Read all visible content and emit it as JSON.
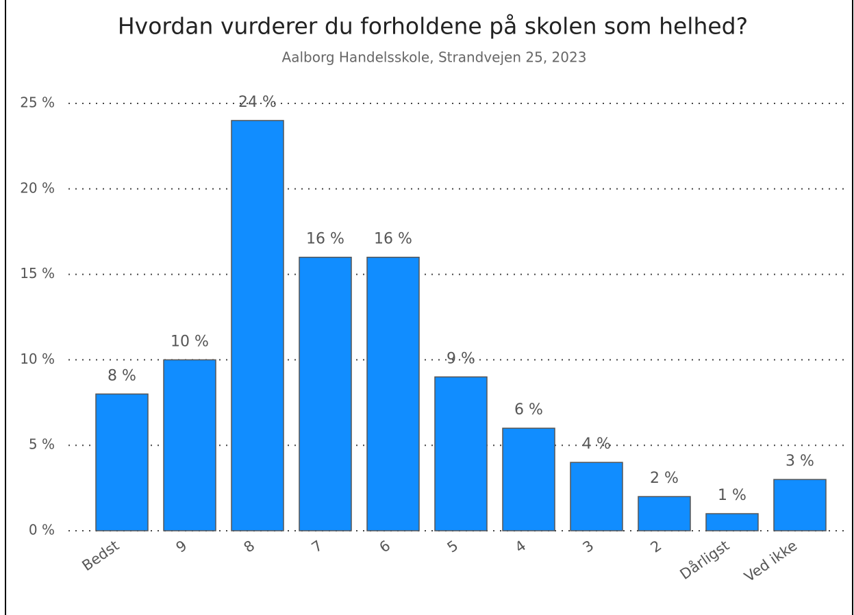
{
  "chart_data": {
    "type": "bar",
    "title": "Hvordan vurderer du forholdene på skolen som helhed?",
    "subtitle": "Aalborg Handelsskole, Strandvejen 25, 2023",
    "categories": [
      "Bedst",
      "9",
      "8",
      "7",
      "6",
      "5",
      "4",
      "3",
      "2",
      "Dårligst",
      "Ved ikke"
    ],
    "values": [
      8,
      10,
      24,
      16,
      16,
      9,
      6,
      4,
      2,
      1,
      3
    ],
    "value_labels": [
      "8 %",
      "10 %",
      "24 %",
      "16 %",
      "16 %",
      "9 %",
      "6 %",
      "4 %",
      "2 %",
      "1 %",
      "3 %"
    ],
    "color": "#118dff",
    "ylim": [
      0,
      25
    ],
    "yticks": [
      {
        "value": 0,
        "label": "0 %"
      },
      {
        "value": 5,
        "label": "5 %"
      },
      {
        "value": 10,
        "label": "10 %"
      },
      {
        "value": 15,
        "label": "15 %"
      },
      {
        "value": 20,
        "label": "20 %"
      },
      {
        "value": 25,
        "label": "25 %"
      }
    ],
    "grid": true
  }
}
